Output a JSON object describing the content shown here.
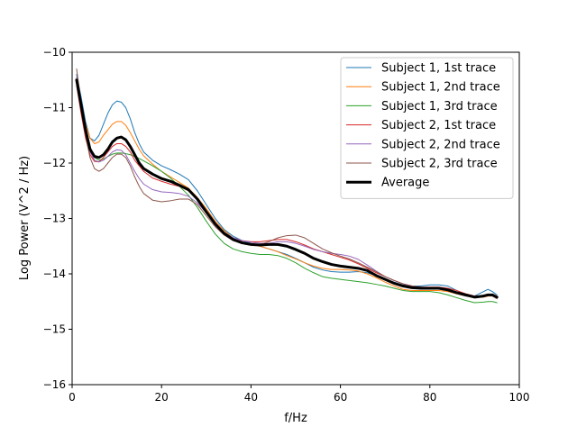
{
  "chart_data": {
    "type": "line",
    "title": "",
    "xlabel": "f/Hz",
    "ylabel": "Log Power (V^2 / Hz)",
    "xlim": [
      0,
      100
    ],
    "ylim": [
      -16,
      -10
    ],
    "xticks": [
      0,
      20,
      40,
      60,
      80,
      100
    ],
    "xtick_labels": [
      "0",
      "20",
      "40",
      "60",
      "80",
      "100"
    ],
    "yticks": [
      -16,
      -15,
      -14,
      -13,
      -12,
      -11,
      -10
    ],
    "ytick_labels": [
      "−16",
      "−15",
      "−14",
      "−13",
      "−12",
      "−11",
      "−10"
    ],
    "grid": false,
    "legend": "top-right",
    "x": [
      1,
      2,
      3,
      4,
      5,
      6,
      7,
      8,
      9,
      10,
      11,
      12,
      13,
      14,
      15,
      16,
      18,
      20,
      22,
      24,
      26,
      28,
      30,
      32,
      34,
      36,
      38,
      40,
      42,
      44,
      46,
      48,
      50,
      52,
      54,
      56,
      58,
      60,
      62,
      64,
      66,
      68,
      70,
      72,
      74,
      76,
      78,
      80,
      82,
      84,
      86,
      88,
      90,
      92,
      93,
      94,
      95
    ],
    "series": [
      {
        "name": "Subject 1, 1st trace",
        "color": "#1f77b4",
        "width": 1,
        "values": [
          -10.4,
          -10.8,
          -11.25,
          -11.55,
          -11.6,
          -11.5,
          -11.3,
          -11.1,
          -10.95,
          -10.88,
          -10.9,
          -11.0,
          -11.2,
          -11.45,
          -11.65,
          -11.8,
          -11.95,
          -12.05,
          -12.12,
          -12.2,
          -12.3,
          -12.5,
          -12.75,
          -13.0,
          -13.2,
          -13.32,
          -13.4,
          -13.45,
          -13.5,
          -13.55,
          -13.6,
          -13.65,
          -13.72,
          -13.8,
          -13.88,
          -13.93,
          -13.96,
          -13.97,
          -13.97,
          -13.96,
          -13.98,
          -14.03,
          -14.1,
          -14.15,
          -14.2,
          -14.22,
          -14.22,
          -14.2,
          -14.2,
          -14.22,
          -14.3,
          -14.38,
          -14.4,
          -14.32,
          -14.28,
          -14.32,
          -14.38
        ]
      },
      {
        "name": "Subject 1, 2nd trace",
        "color": "#ff7f0e",
        "width": 1,
        "values": [
          -10.5,
          -10.9,
          -11.3,
          -11.55,
          -11.65,
          -11.62,
          -11.5,
          -11.4,
          -11.3,
          -11.25,
          -11.25,
          -11.32,
          -11.45,
          -11.6,
          -11.75,
          -11.87,
          -12.02,
          -12.15,
          -12.25,
          -12.35,
          -12.45,
          -12.62,
          -12.82,
          -13.05,
          -13.22,
          -13.35,
          -13.42,
          -13.47,
          -13.5,
          -13.55,
          -13.6,
          -13.67,
          -13.73,
          -13.8,
          -13.86,
          -13.9,
          -13.92,
          -13.92,
          -13.93,
          -13.95,
          -14.0,
          -14.07,
          -14.15,
          -14.22,
          -14.28,
          -14.3,
          -14.3,
          -14.3,
          -14.3,
          -14.32,
          -14.36,
          -14.4,
          -14.42,
          -14.42,
          -14.4,
          -14.4,
          -14.44
        ]
      },
      {
        "name": "Subject 1, 3rd trace",
        "color": "#2ca02c",
        "width": 1,
        "values": [
          -10.55,
          -11.0,
          -11.4,
          -11.7,
          -11.9,
          -11.95,
          -11.93,
          -11.88,
          -11.84,
          -11.82,
          -11.82,
          -11.83,
          -11.85,
          -11.88,
          -11.92,
          -11.96,
          -12.05,
          -12.15,
          -12.27,
          -12.42,
          -12.58,
          -12.8,
          -13.05,
          -13.28,
          -13.45,
          -13.55,
          -13.6,
          -13.63,
          -13.65,
          -13.65,
          -13.67,
          -13.72,
          -13.8,
          -13.9,
          -13.98,
          -14.05,
          -14.08,
          -14.1,
          -14.12,
          -14.14,
          -14.16,
          -14.19,
          -14.22,
          -14.26,
          -14.3,
          -14.32,
          -14.32,
          -14.32,
          -14.34,
          -14.38,
          -14.43,
          -14.48,
          -14.52,
          -14.51,
          -14.5,
          -14.5,
          -14.52
        ]
      },
      {
        "name": "Subject 2, 1st trace",
        "color": "#d62728",
        "width": 1,
        "values": [
          -10.6,
          -11.1,
          -11.55,
          -11.85,
          -11.97,
          -11.98,
          -11.9,
          -11.8,
          -11.7,
          -11.65,
          -11.65,
          -11.7,
          -11.8,
          -11.95,
          -12.05,
          -12.15,
          -12.27,
          -12.33,
          -12.38,
          -12.42,
          -12.5,
          -12.65,
          -12.9,
          -13.1,
          -13.25,
          -13.35,
          -13.4,
          -13.42,
          -13.42,
          -13.4,
          -13.38,
          -13.38,
          -13.42,
          -13.48,
          -13.55,
          -13.6,
          -13.65,
          -13.7,
          -13.75,
          -13.82,
          -13.9,
          -13.98,
          -14.05,
          -14.12,
          -14.18,
          -14.22,
          -14.24,
          -14.24,
          -14.24,
          -14.26,
          -14.3,
          -14.36,
          -14.4,
          -14.4,
          -14.38,
          -14.38,
          -14.42
        ]
      },
      {
        "name": "Subject 2, 2nd trace",
        "color": "#9467bd",
        "width": 1,
        "values": [
          -10.45,
          -10.95,
          -11.45,
          -11.8,
          -11.95,
          -11.98,
          -11.95,
          -11.88,
          -11.8,
          -11.76,
          -11.77,
          -11.85,
          -12.0,
          -12.15,
          -12.28,
          -12.38,
          -12.48,
          -12.52,
          -12.53,
          -12.55,
          -12.6,
          -12.72,
          -12.9,
          -13.1,
          -13.25,
          -13.35,
          -13.4,
          -13.43,
          -13.45,
          -13.45,
          -13.42,
          -13.42,
          -13.45,
          -13.5,
          -13.56,
          -13.6,
          -13.63,
          -13.65,
          -13.68,
          -13.74,
          -13.84,
          -13.95,
          -14.05,
          -14.12,
          -14.18,
          -14.22,
          -14.25,
          -14.25,
          -14.26,
          -14.3,
          -14.35,
          -14.4,
          -14.42,
          -14.4,
          -14.38,
          -14.4,
          -14.44
        ]
      },
      {
        "name": "Subject 2, 3rd trace",
        "color": "#8c564b",
        "width": 1,
        "values": [
          -10.3,
          -10.9,
          -11.5,
          -11.9,
          -12.1,
          -12.15,
          -12.1,
          -12.0,
          -11.9,
          -11.84,
          -11.84,
          -11.9,
          -12.05,
          -12.25,
          -12.42,
          -12.55,
          -12.67,
          -12.7,
          -12.68,
          -12.65,
          -12.65,
          -12.75,
          -12.95,
          -13.15,
          -13.3,
          -13.4,
          -13.45,
          -13.48,
          -13.47,
          -13.42,
          -13.35,
          -13.31,
          -13.3,
          -13.35,
          -13.45,
          -13.55,
          -13.62,
          -13.68,
          -13.73,
          -13.8,
          -13.88,
          -13.96,
          -14.05,
          -14.12,
          -14.18,
          -14.22,
          -14.24,
          -14.25,
          -14.26,
          -14.29,
          -14.34,
          -14.39,
          -14.42,
          -14.4,
          -14.38,
          -14.4,
          -14.45
        ]
      },
      {
        "name": "Average",
        "color": "#000000",
        "width": 3,
        "values": [
          -10.5,
          -10.95,
          -11.4,
          -11.75,
          -11.88,
          -11.9,
          -11.85,
          -11.75,
          -11.62,
          -11.55,
          -11.53,
          -11.58,
          -11.7,
          -11.85,
          -12.0,
          -12.1,
          -12.2,
          -12.28,
          -12.33,
          -12.4,
          -12.48,
          -12.65,
          -12.88,
          -13.1,
          -13.27,
          -13.38,
          -13.44,
          -13.47,
          -13.48,
          -13.47,
          -13.47,
          -13.5,
          -13.56,
          -13.63,
          -13.72,
          -13.78,
          -13.83,
          -13.86,
          -13.88,
          -13.9,
          -13.94,
          -14.03,
          -14.1,
          -14.17,
          -14.22,
          -14.25,
          -14.26,
          -14.26,
          -14.26,
          -14.29,
          -14.34,
          -14.38,
          -14.42,
          -14.4,
          -14.38,
          -14.38,
          -14.42
        ]
      }
    ]
  }
}
